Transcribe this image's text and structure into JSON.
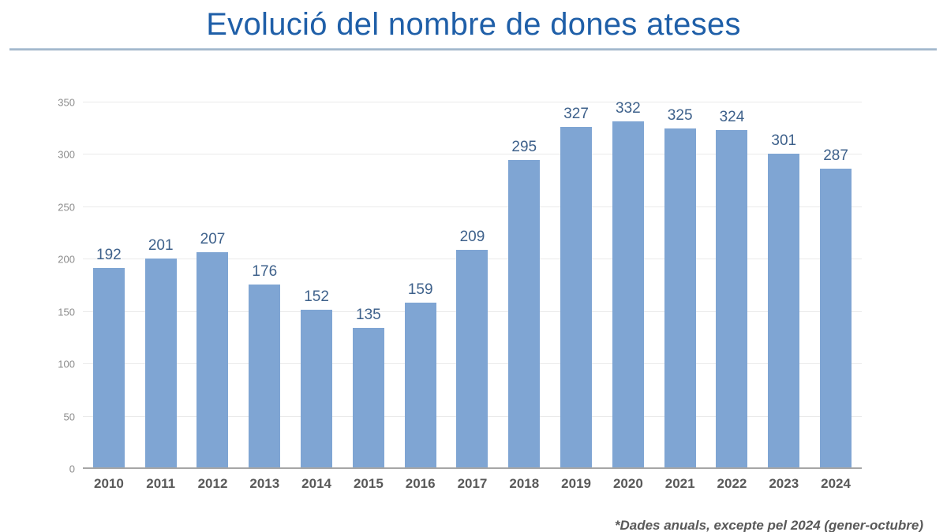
{
  "page": {
    "title": "Evolució del nombre de dones ateses",
    "footnote": "*Dades anuals, excepte pel 2024 (gener-octubre)"
  },
  "chart_data": {
    "type": "bar",
    "title": "Evolució del nombre de dones ateses",
    "categories": [
      "2010",
      "2011",
      "2012",
      "2013",
      "2014",
      "2015",
      "2016",
      "2017",
      "2018",
      "2019",
      "2020",
      "2021",
      "2022",
      "2023",
      "2024"
    ],
    "values": [
      192,
      201,
      207,
      176,
      152,
      135,
      159,
      209,
      295,
      327,
      332,
      325,
      324,
      301,
      287
    ],
    "xlabel": "",
    "ylabel": "",
    "ylim": [
      0,
      350
    ],
    "ytick_step": 50,
    "grid": "horizontal",
    "legend": "none",
    "annotation": "*Dades anuals, excepte pel 2024 (gener-octubre)",
    "colors": {
      "bar": "#7fa5d3",
      "value_label": "#3e618b",
      "title": "#1f5fa8",
      "y_tick": "#8c8c8c",
      "x_label": "#595959",
      "gridline": "#eaeaea",
      "baseline": "#a6a6a6",
      "divider": "#8fa6bd",
      "divider_light": "#c3d2e2",
      "footnote": "#595959"
    }
  }
}
